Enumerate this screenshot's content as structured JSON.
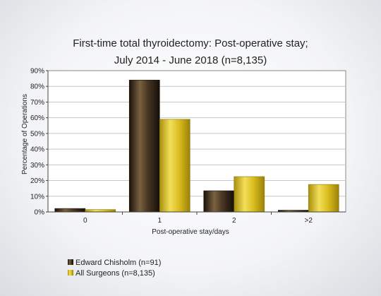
{
  "chart_data": {
    "type": "bar",
    "title_line1": "First-time total thyroidectomy: Post-operative stay;",
    "title_line2": "July 2014 - June 2018 (n=8,135)",
    "xlabel": "Post-operative stay/days",
    "ylabel": "Percentage of Operations",
    "categories": [
      "0",
      "1",
      "2",
      ">2"
    ],
    "ylim": [
      0,
      90
    ],
    "yticks": [
      "0%",
      "10%",
      "20%",
      "30%",
      "40%",
      "50%",
      "60%",
      "70%",
      "80%",
      "90%"
    ],
    "grid": true,
    "legend_position": "bottom-left",
    "series": [
      {
        "name": "Edward Chisholm (n=91)",
        "values": [
          2.2,
          84.0,
          13.5,
          1.1
        ],
        "color": "#3a2a1a"
      },
      {
        "name": "All Surgeons (n=8,135)",
        "values": [
          1.5,
          59.0,
          22.5,
          17.5
        ],
        "color": "#d4b614"
      }
    ]
  }
}
